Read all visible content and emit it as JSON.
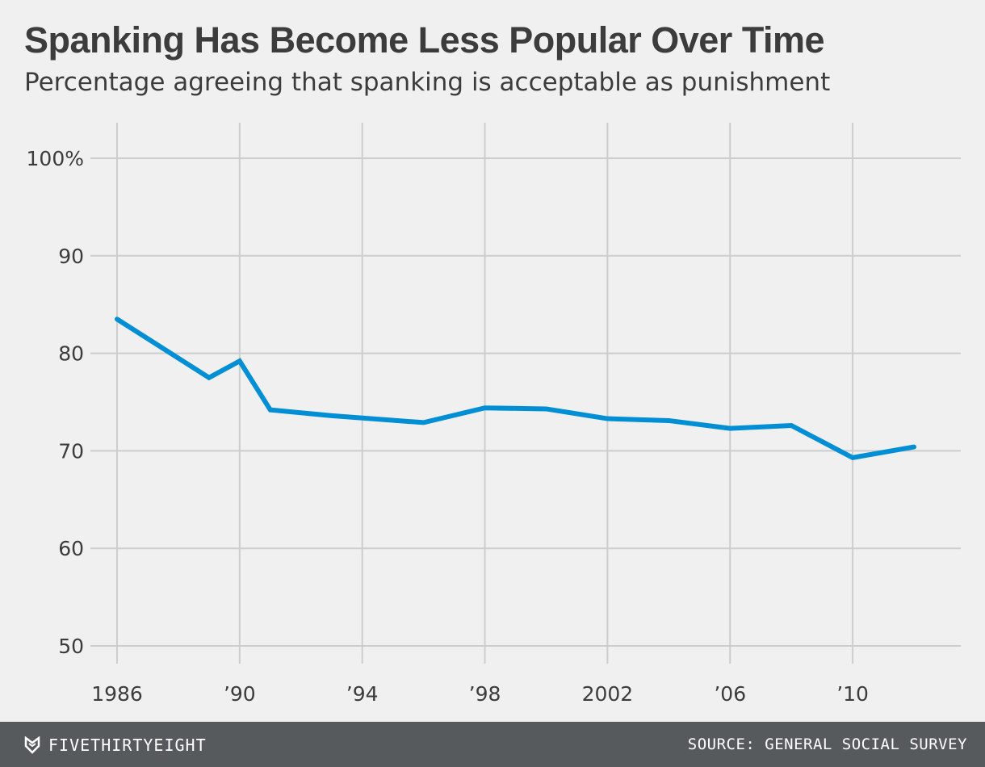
{
  "chart_data": {
    "type": "line",
    "title": "Spanking Has Become Less Popular Over Time",
    "subtitle": "Percentage agreeing that spanking is acceptable as punishment",
    "x": [
      1986,
      1989,
      1990,
      1991,
      1993,
      1996,
      1998,
      2000,
      2002,
      2004,
      2006,
      2008,
      2010,
      2012
    ],
    "series": [
      {
        "values": [
          83.5,
          77.5,
          79.2,
          74.2,
          73.6,
          72.9,
          74.4,
          74.3,
          73.3,
          73.1,
          72.3,
          72.6,
          69.3,
          70.4
        ],
        "color": "#008fd5"
      }
    ],
    "xlim": [
      1986,
      2012
    ],
    "ylim": [
      50,
      100
    ],
    "x_ticks": [
      {
        "value": 1986,
        "label": "1986"
      },
      {
        "value": 1990,
        "label": "’90"
      },
      {
        "value": 1994,
        "label": "’94"
      },
      {
        "value": 1998,
        "label": "’98"
      },
      {
        "value": 2002,
        "label": "2002"
      },
      {
        "value": 2006,
        "label": "’06"
      },
      {
        "value": 2010,
        "label": "’10"
      }
    ],
    "y_ticks": [
      {
        "value": 100,
        "label": "100%"
      },
      {
        "value": 90,
        "label": "90"
      },
      {
        "value": 80,
        "label": "80"
      },
      {
        "value": 70,
        "label": "70"
      },
      {
        "value": 60,
        "label": "60"
      },
      {
        "value": 50,
        "label": "50"
      }
    ],
    "grid": true,
    "xlabel": "",
    "ylabel": ""
  },
  "footer": {
    "brand": "FIVETHIRTYEIGHT",
    "brand_icon": "fivethirtyeight-logo-icon",
    "source": "SOURCE: GENERAL SOCIAL SURVEY"
  },
  "colors": {
    "line": "#008fd5",
    "grid": "#cdcdcd",
    "background": "#f0f0f0",
    "footer": "#575a5c"
  }
}
